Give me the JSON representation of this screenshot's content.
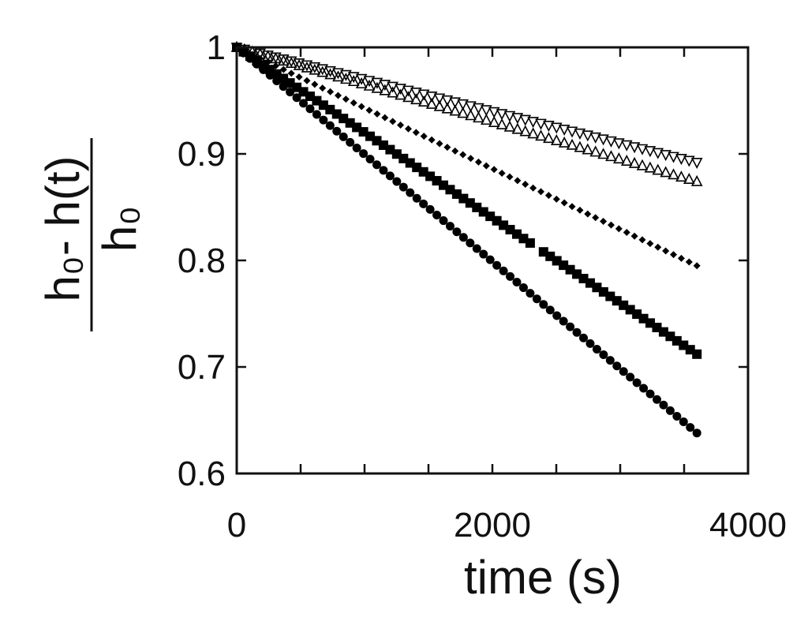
{
  "chart_data": {
    "type": "scatter",
    "title": "",
    "xlabel": "time  (s)",
    "ylabel": {
      "numerator": "h₀- h(t)",
      "denominator": "h₀"
    },
    "xlim": [
      0,
      4000
    ],
    "ylim": [
      0.6,
      1.0
    ],
    "xticks": [
      0,
      2000,
      4000
    ],
    "xtick_labels": [
      "0",
      "2000",
      "4000"
    ],
    "yticks": [
      0.6,
      0.7,
      0.8,
      0.9,
      1.0
    ],
    "ytick_labels": [
      "0.6",
      "0.7",
      "0.8",
      "0.9",
      "1"
    ],
    "minor_xticks": [
      500,
      1000,
      1500,
      2500,
      3000,
      3500
    ],
    "grid": false,
    "legend": "none",
    "series": [
      {
        "marker": "triangle-down",
        "x0": 0,
        "x1": 3600,
        "y0": 1.0,
        "y1": 0.892,
        "count": 60
      },
      {
        "marker": "triangle-up",
        "x0": 0,
        "x1": 3600,
        "y0": 1.0,
        "y1": 0.874,
        "count": 60
      },
      {
        "marker": "diamond",
        "x0": 0,
        "x1": 3600,
        "y0": 1.0,
        "y1": 0.795,
        "count": 60
      },
      {
        "marker": "square",
        "x0": 0,
        "x1": 3600,
        "y0": 1.0,
        "y1": 0.712,
        "count": 70,
        "gap": [
          2300,
          2350
        ]
      },
      {
        "marker": "circle",
        "x0": 0,
        "x1": 3600,
        "y0": 1.0,
        "y1": 0.638,
        "count": 70
      }
    ],
    "colors": {
      "marker": "#000000",
      "axis": "#111111"
    }
  }
}
